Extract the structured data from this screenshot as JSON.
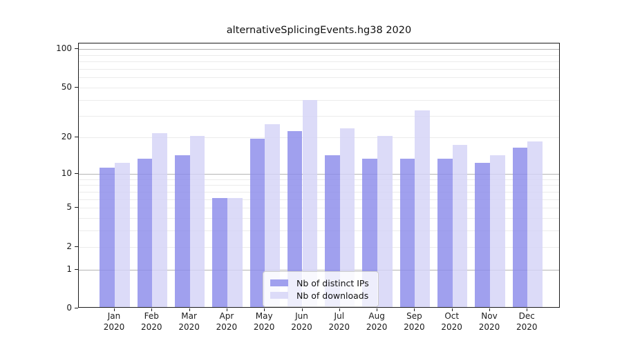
{
  "title": "alternativeSplicingEvents.hg38 2020",
  "chart_data": {
    "type": "bar",
    "title": "alternativeSplicingEvents.hg38 2020",
    "categories": [
      "Jan 2020",
      "Feb 2020",
      "Mar 2020",
      "Apr 2020",
      "May 2020",
      "Jun 2020",
      "Jul 2020",
      "Aug 2020",
      "Sep 2020",
      "Oct 2020",
      "Nov 2020",
      "Dec 2020"
    ],
    "x_tick_line1": [
      "Jan",
      "Feb",
      "Mar",
      "Apr",
      "May",
      "Jun",
      "Jul",
      "Aug",
      "Sep",
      "Oct",
      "Nov",
      "Dec"
    ],
    "x_tick_line2": "2020",
    "series": [
      {
        "name": "Nb of distinct IPs",
        "color": "#a0a0ee",
        "values": [
          11,
          13,
          14,
          6,
          19,
          22,
          14,
          13,
          13,
          13,
          12,
          16
        ]
      },
      {
        "name": "Nb of downloads",
        "color": "#dcdbf8",
        "values": [
          12,
          21,
          20,
          6,
          25,
          39,
          23,
          20,
          32,
          17,
          14,
          18
        ]
      }
    ],
    "xlabel": "",
    "ylabel": "",
    "y_scale": "log1p",
    "ylim": [
      0,
      111
    ],
    "y_tick_values": [
      100,
      50,
      20,
      10,
      5,
      2,
      1,
      0
    ],
    "y_tick_labels": [
      "100",
      "50",
      "20",
      "10",
      "5",
      "2",
      "1",
      "0"
    ],
    "grid_major_values": [
      1,
      10,
      100
    ],
    "grid_minor_values": [
      2,
      3,
      4,
      5,
      6,
      7,
      8,
      9,
      20,
      30,
      40,
      50,
      60,
      70,
      80,
      90
    ],
    "grid": "on",
    "legend_position": "lower center",
    "legend_entries": [
      "Nb of distinct IPs",
      "Nb of downloads"
    ]
  },
  "colors": {
    "bar_dark": "#a0a0ee",
    "bar_light": "#dcdbf8",
    "grid_major": "#b4b4b4",
    "grid_minor": "#ebebeb",
    "axis": "#1a1a1a",
    "legend_border": "#cccccc",
    "background": "#ffffff"
  }
}
